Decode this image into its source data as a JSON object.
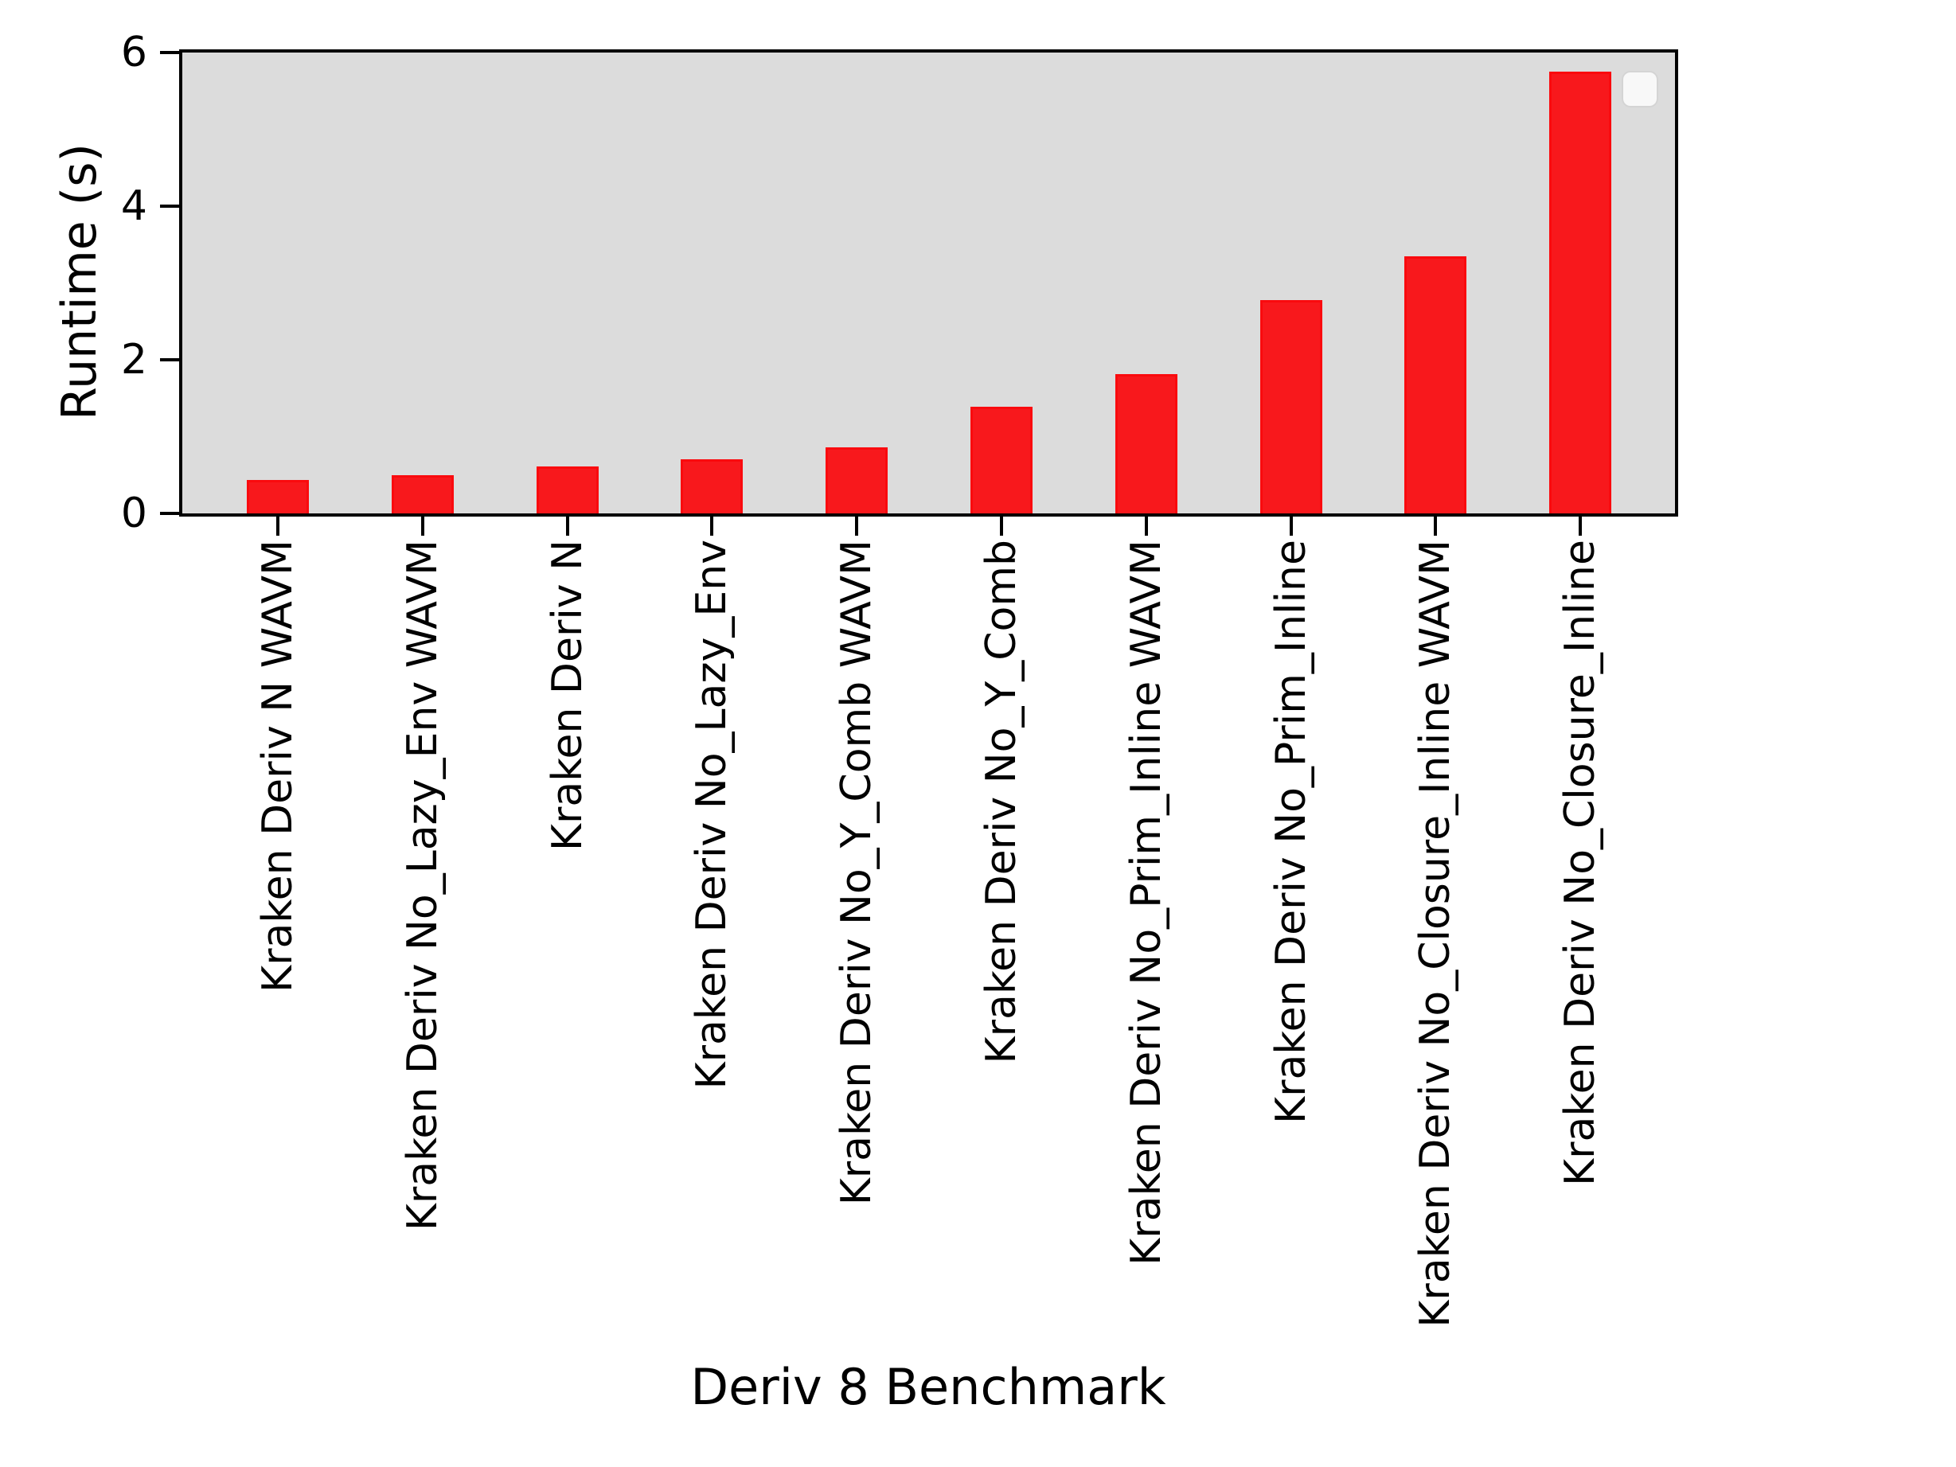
{
  "figure": {
    "background": "#ffffff",
    "plot_background": "#dcdcdc",
    "axis_color": "#000000",
    "bar_fill": "#f8181c",
    "bar_edge": "#fa0a0e"
  },
  "legend": {
    "visible": true,
    "entries": []
  },
  "chart_data": {
    "type": "bar",
    "title": "",
    "xlabel": "Deriv 8 Benchmark",
    "ylabel": "Runtime (s)",
    "categories": [
      "Kraken Deriv N WAVM",
      "Kraken Deriv No_Lazy_Env WAVM",
      "Kraken Deriv N",
      "Kraken Deriv No_Lazy_Env",
      "Kraken Deriv No_Y_Comb WAVM",
      "Kraken Deriv No_Y_Comb",
      "Kraken Deriv No_Prim_Inline WAVM",
      "Kraken Deriv No_Prim_Inline",
      "Kraken Deriv No_Closure_Inline WAVM",
      "Kraken Deriv No_Closure_Inline"
    ],
    "values": [
      0.44,
      0.5,
      0.61,
      0.7,
      0.86,
      1.39,
      1.81,
      2.78,
      3.35,
      5.75
    ],
    "yticks": [
      0,
      2,
      4,
      6
    ],
    "ylim": [
      0,
      6.05
    ],
    "grid": false,
    "legend_position": "upper right",
    "bar_color": "#f8181c"
  }
}
